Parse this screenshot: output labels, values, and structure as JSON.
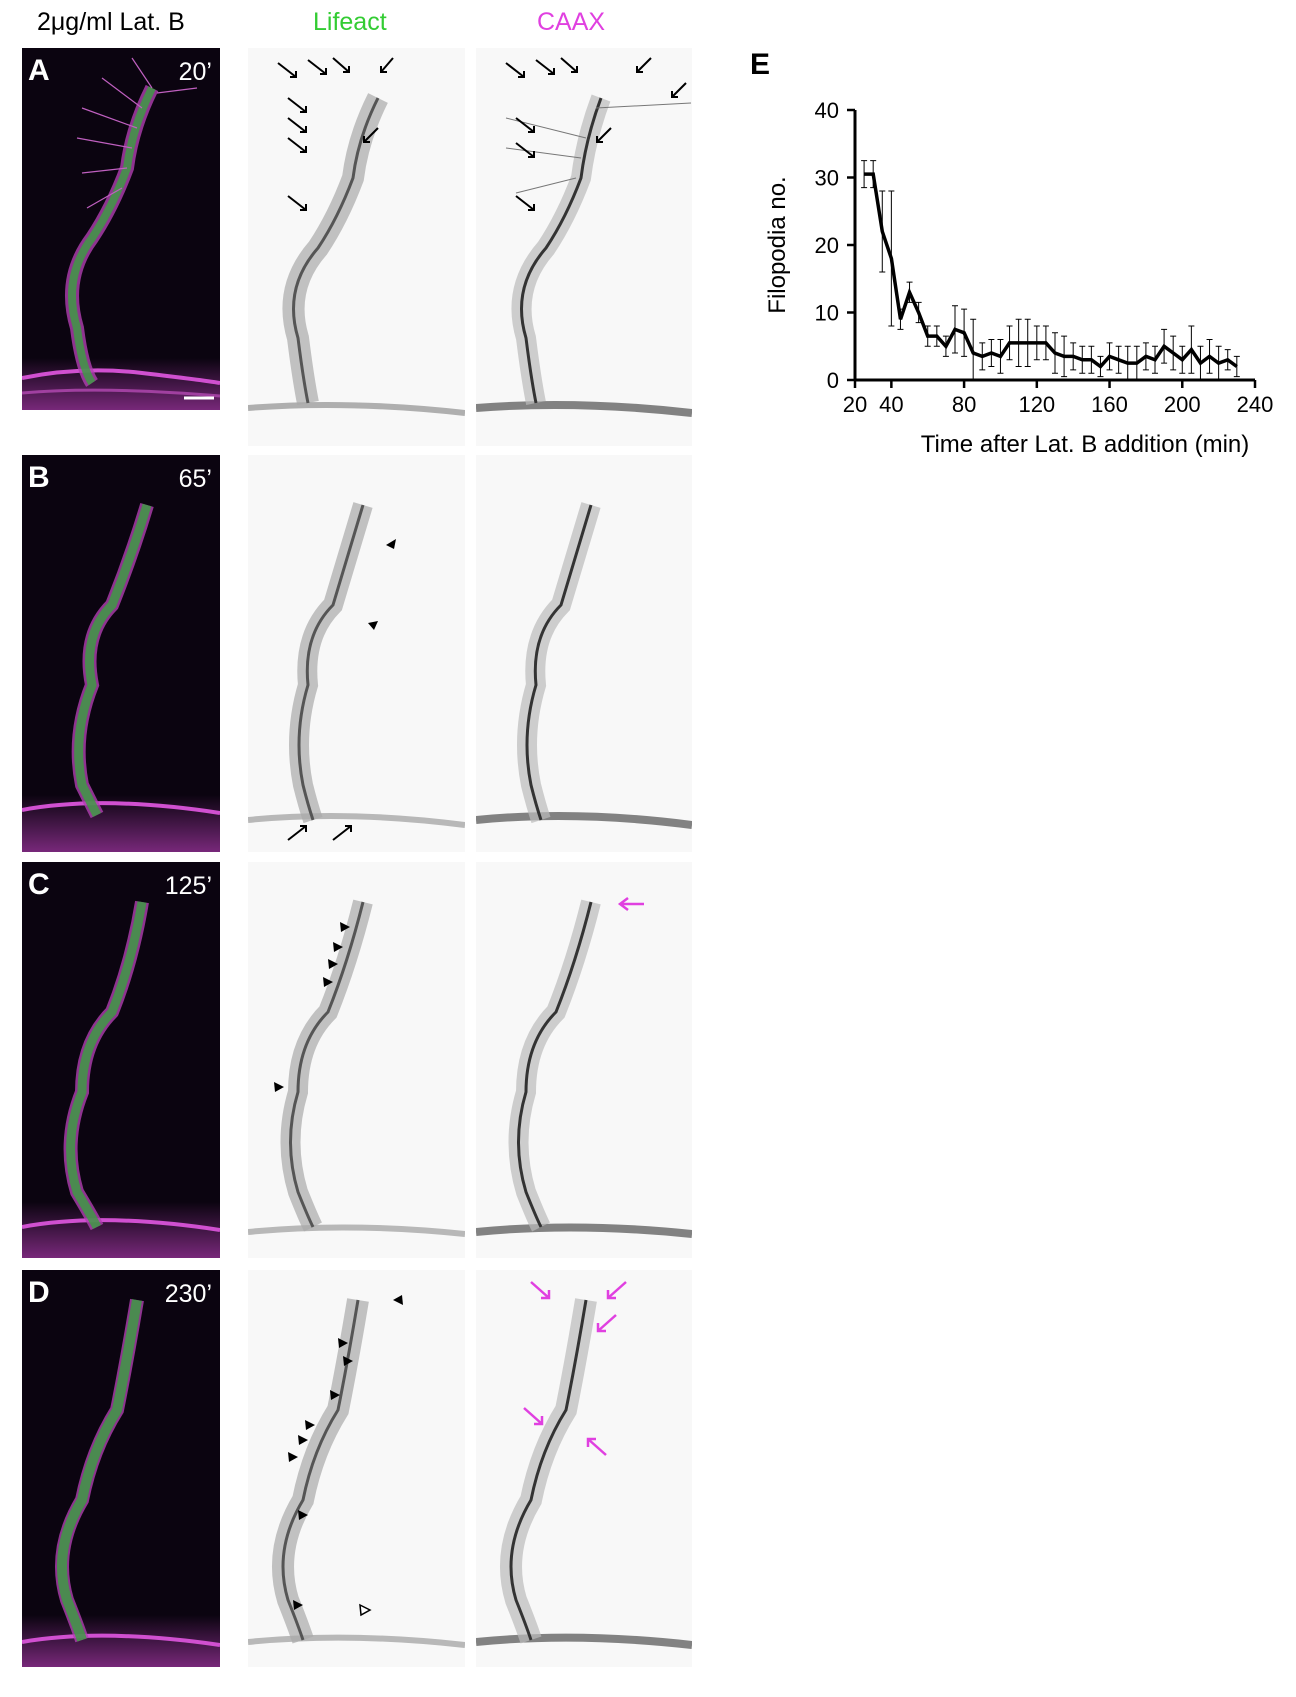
{
  "header": {
    "treatment": "2μg/ml Lat. B",
    "channel_lifeact": "Lifeact",
    "channel_caax": "CAAX",
    "lifeact_color": "#33cc33",
    "caax_color": "#e040e0"
  },
  "rows": [
    {
      "label": "A",
      "time": "20’"
    },
    {
      "label": "B",
      "time": "65’"
    },
    {
      "label": "C",
      "time": "125’"
    },
    {
      "label": "D",
      "time": "230’"
    }
  ],
  "chart_label": "E",
  "chart_data": {
    "type": "line",
    "xlabel": "Time after Lat. B addition (min)",
    "ylabel": "Filopodia no.",
    "xlim": [
      20,
      240
    ],
    "ylim": [
      0,
      40
    ],
    "xticks": [
      "20",
      "40",
      "80",
      "120",
      "160",
      "200",
      "240"
    ],
    "yticks": [
      "0",
      "10",
      "20",
      "30",
      "40"
    ],
    "series": [
      {
        "x": [
          25,
          30,
          35,
          40,
          45,
          50,
          55,
          60,
          65,
          70,
          75,
          80,
          85,
          90,
          95,
          100,
          105,
          110,
          115,
          120,
          125,
          130,
          135,
          140,
          145,
          150,
          155,
          160,
          165,
          170,
          175,
          180,
          185,
          190,
          195,
          200,
          205,
          210,
          215,
          220,
          225,
          230
        ],
        "y": [
          30.5,
          30.5,
          22,
          18,
          9,
          13,
          10,
          6.5,
          6.5,
          5,
          7.5,
          7,
          4,
          3.5,
          4,
          3.5,
          5.5,
          5.5,
          5.5,
          5.5,
          5.5,
          4,
          3.5,
          3.5,
          3,
          3,
          2,
          3.5,
          3,
          2.5,
          2.5,
          3.5,
          3,
          5,
          4,
          3,
          4.5,
          2.5,
          3.5,
          2.5,
          3,
          2
        ],
        "err": [
          2,
          2,
          6,
          10,
          1.5,
          1.5,
          1.5,
          1.5,
          1.5,
          1.5,
          3.5,
          3.5,
          5,
          2,
          2,
          2.5,
          2.5,
          3.5,
          3.5,
          2.5,
          2.5,
          3,
          3,
          2,
          2,
          2,
          1.5,
          2,
          2,
          2.5,
          2.5,
          2,
          2,
          2.5,
          2.5,
          2,
          3.5,
          2.5,
          2.5,
          2.5,
          1.5,
          1.5
        ]
      }
    ]
  }
}
